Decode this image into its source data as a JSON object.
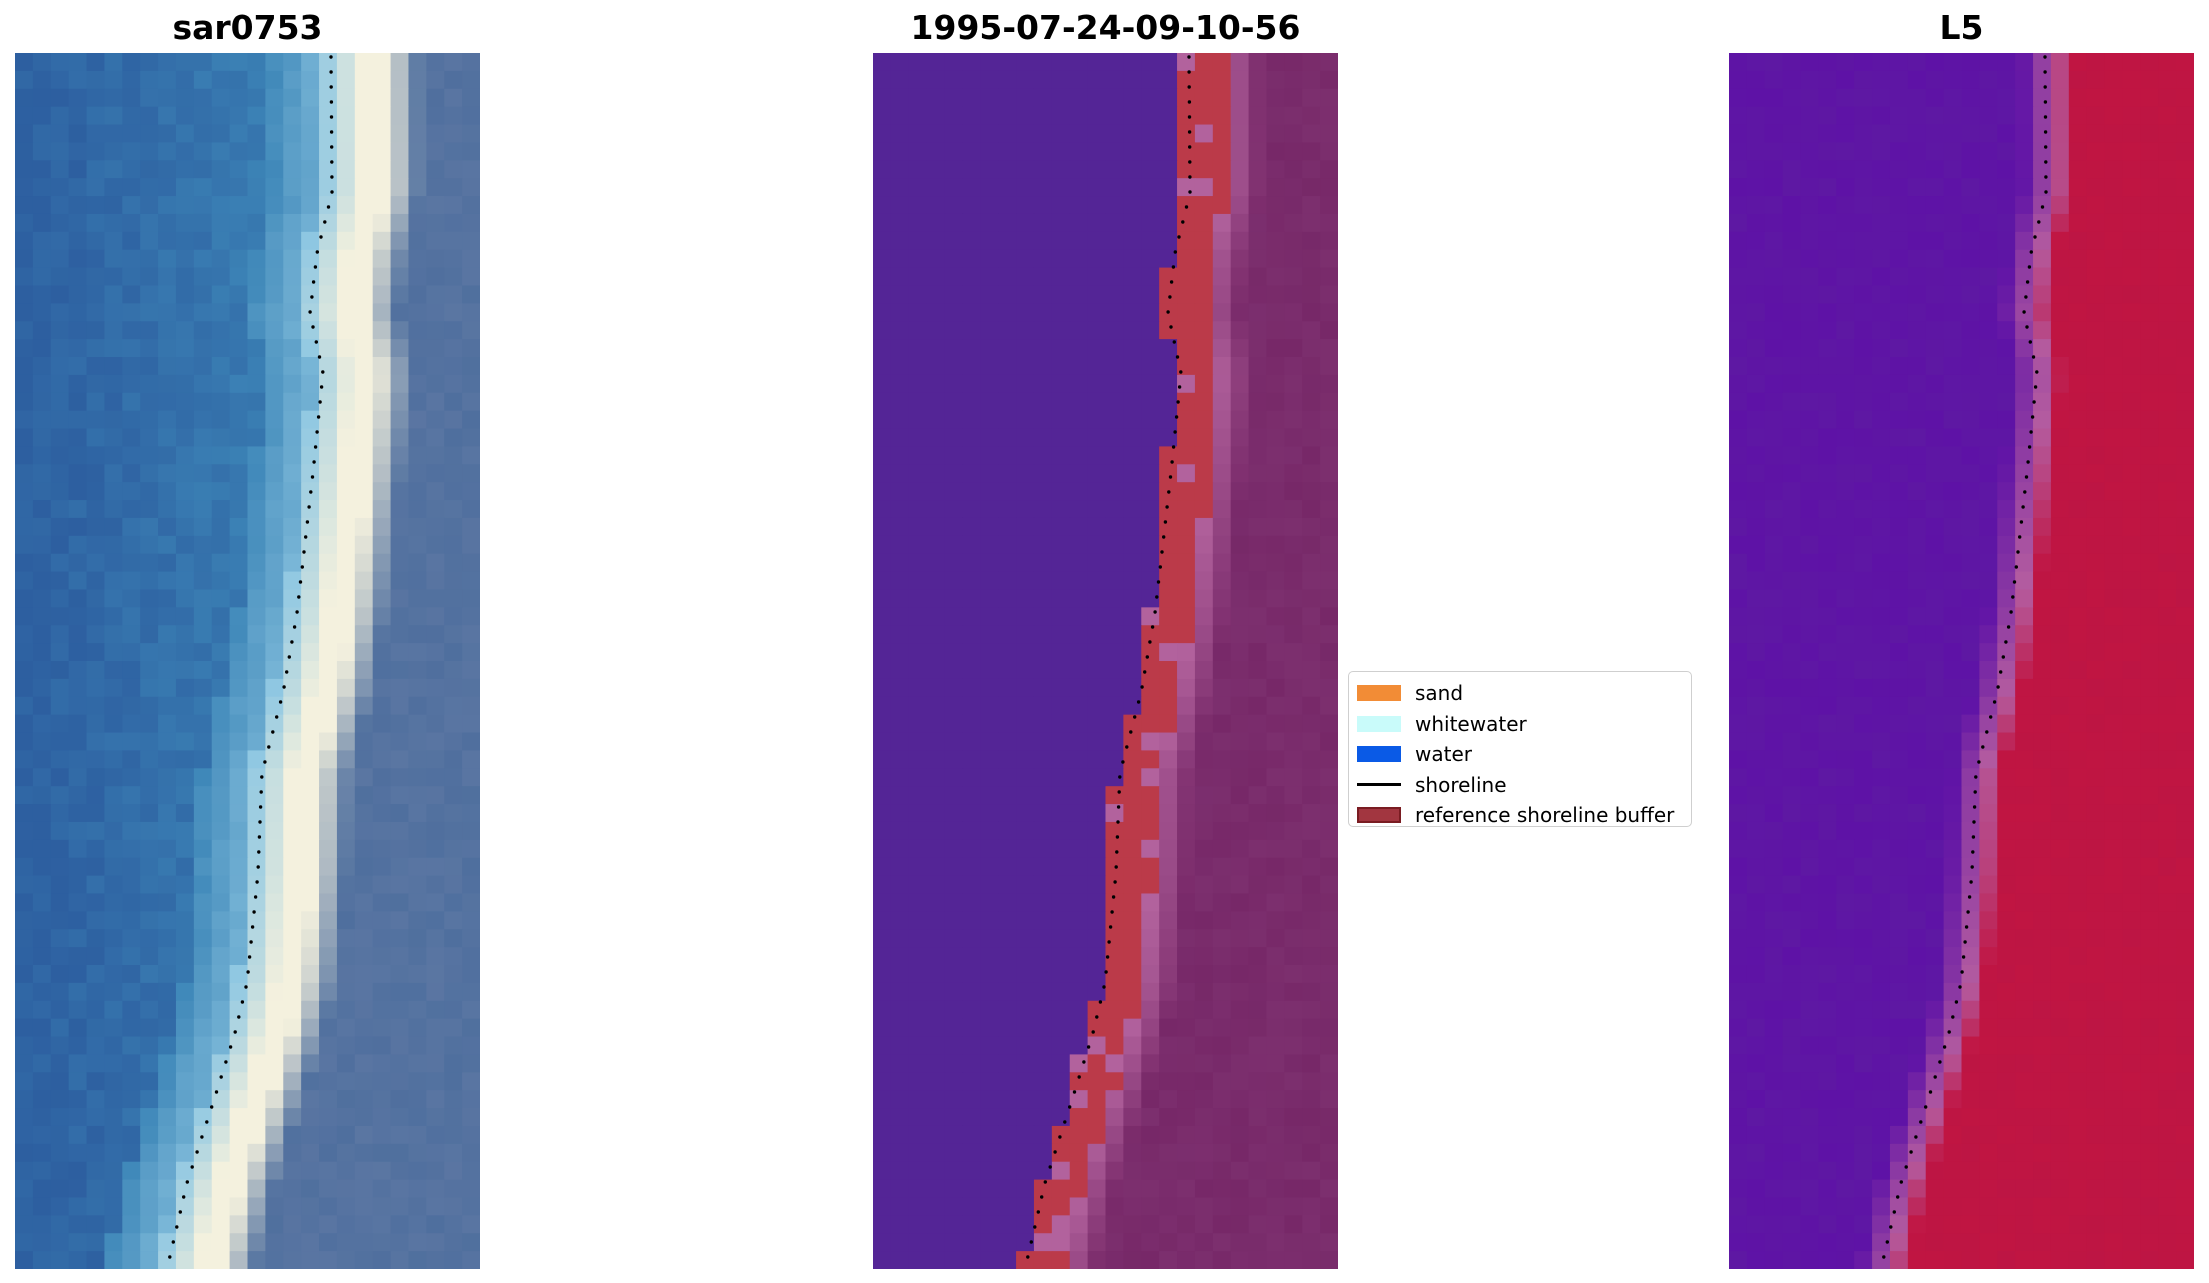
{
  "panels": [
    {
      "title": "sar0753",
      "image": "rgb-composite",
      "colors": [
        "#2d5fa0",
        "#3d86b8",
        "#8ec7e2",
        "#f4f1de",
        "#4f6f9e"
      ]
    },
    {
      "title": "1995-07-24-09-10-56",
      "image": "classified",
      "colors": [
        "#542596",
        "#bb3a49",
        "#b2629d",
        "#772868"
      ]
    },
    {
      "title": "L5",
      "image": "index",
      "colors": [
        "#5e12a6",
        "#b45ca0",
        "#c01542"
      ]
    }
  ],
  "legend": {
    "items": [
      {
        "label": "sand",
        "color": "#f28c36",
        "kind": "patch"
      },
      {
        "label": "whitewater",
        "color": "#c9fbfa",
        "kind": "patch"
      },
      {
        "label": "water",
        "color": "#0a5ae6",
        "kind": "patch"
      },
      {
        "label": "shoreline",
        "color": "#000000",
        "kind": "line"
      },
      {
        "label": "reference shoreline buffer",
        "color": "#a23640",
        "kind": "buffer"
      }
    ]
  }
}
